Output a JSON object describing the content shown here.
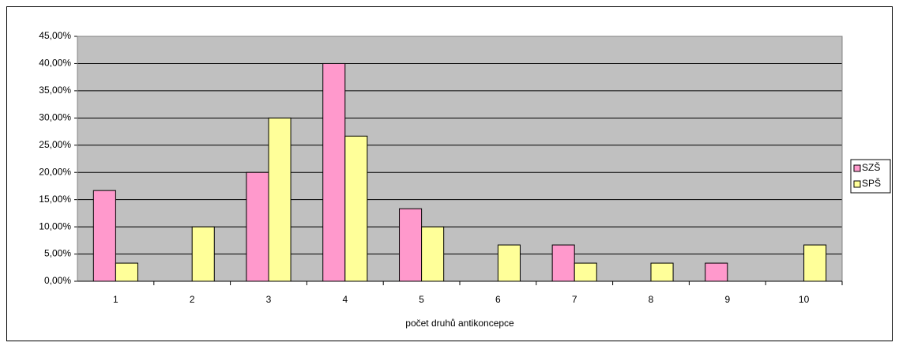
{
  "chart_data": {
    "type": "bar",
    "x_label": "počet druhů antikoncepce",
    "categories": [
      "1",
      "2",
      "3",
      "4",
      "5",
      "6",
      "7",
      "8",
      "9",
      "10"
    ],
    "series": [
      {
        "name": "SZŠ",
        "color": "#ff99cc",
        "values": [
          16.67,
          0,
          20,
          40,
          13.33,
          0,
          6.67,
          0,
          3.33,
          0
        ]
      },
      {
        "name": "SPŠ",
        "color": "#ffff99",
        "values": [
          3.33,
          10,
          30,
          26.67,
          10,
          6.67,
          3.33,
          3.33,
          0,
          6.67
        ]
      }
    ],
    "ylim": [
      0,
      45
    ],
    "yticks": [
      {
        "value": 0,
        "label": "0,00%"
      },
      {
        "value": 5,
        "label": "5,00%"
      },
      {
        "value": 10,
        "label": "10,00%"
      },
      {
        "value": 15,
        "label": "15,00%"
      },
      {
        "value": 20,
        "label": "20,00%"
      },
      {
        "value": 25,
        "label": "25,00%"
      },
      {
        "value": 30,
        "label": "30,00%"
      },
      {
        "value": 35,
        "label": "35,00%"
      },
      {
        "value": 40,
        "label": "40,00%"
      },
      {
        "value": 45,
        "label": "45,00%"
      }
    ],
    "grid": true,
    "legend": "right"
  }
}
